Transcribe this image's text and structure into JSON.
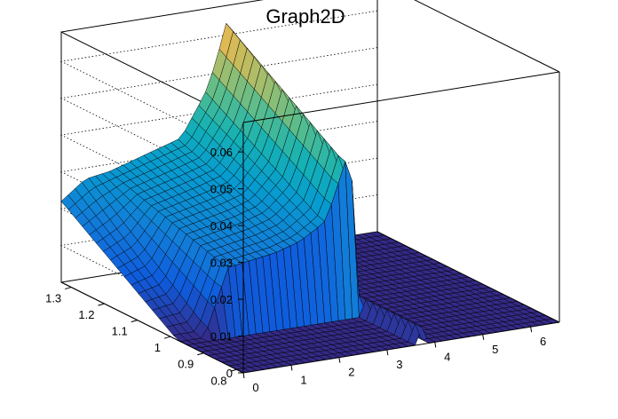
{
  "chart_data": {
    "type": "surface",
    "title": "Graph2D",
    "xlabel": "",
    "ylabel": "",
    "zlabel": "",
    "x_ticks": [
      "0",
      "1",
      "2",
      "3",
      "4",
      "5",
      "6"
    ],
    "y_ticks": [
      "0.8",
      "0.9",
      "1",
      "1.1",
      "1.2",
      "1.3"
    ],
    "z_ticks": [
      "0",
      "0.01",
      "0.02",
      "0.03",
      "0.04",
      "0.05",
      "0.06"
    ],
    "xlim": [
      0,
      6.6
    ],
    "ylim": [
      0.78,
      1.33
    ],
    "zlim": [
      0,
      0.068
    ],
    "grid": true,
    "colormap": "parula",
    "colors": {
      "low": "#352a87",
      "mid": "#38b99e",
      "high": "#f9fb0e"
    },
    "surface_profile": {
      "x": [
        0.0,
        0.5,
        1.0,
        1.5,
        2.0,
        2.5,
        3.0,
        3.2,
        3.4,
        3.5,
        3.6,
        3.75,
        4.0,
        6.6
      ],
      "z_high_y": [
        0.022,
        0.027,
        0.028,
        0.03,
        0.032,
        0.034,
        0.045,
        0.052,
        0.061,
        0.066,
        0.06,
        0.0,
        0.0,
        0.0
      ],
      "z_low_y": [
        0.0,
        0.0,
        0.018,
        0.019,
        0.02,
        0.022,
        0.026,
        0.032,
        0.04,
        0.044,
        0.035,
        0.0,
        0.0,
        0.0
      ]
    }
  }
}
